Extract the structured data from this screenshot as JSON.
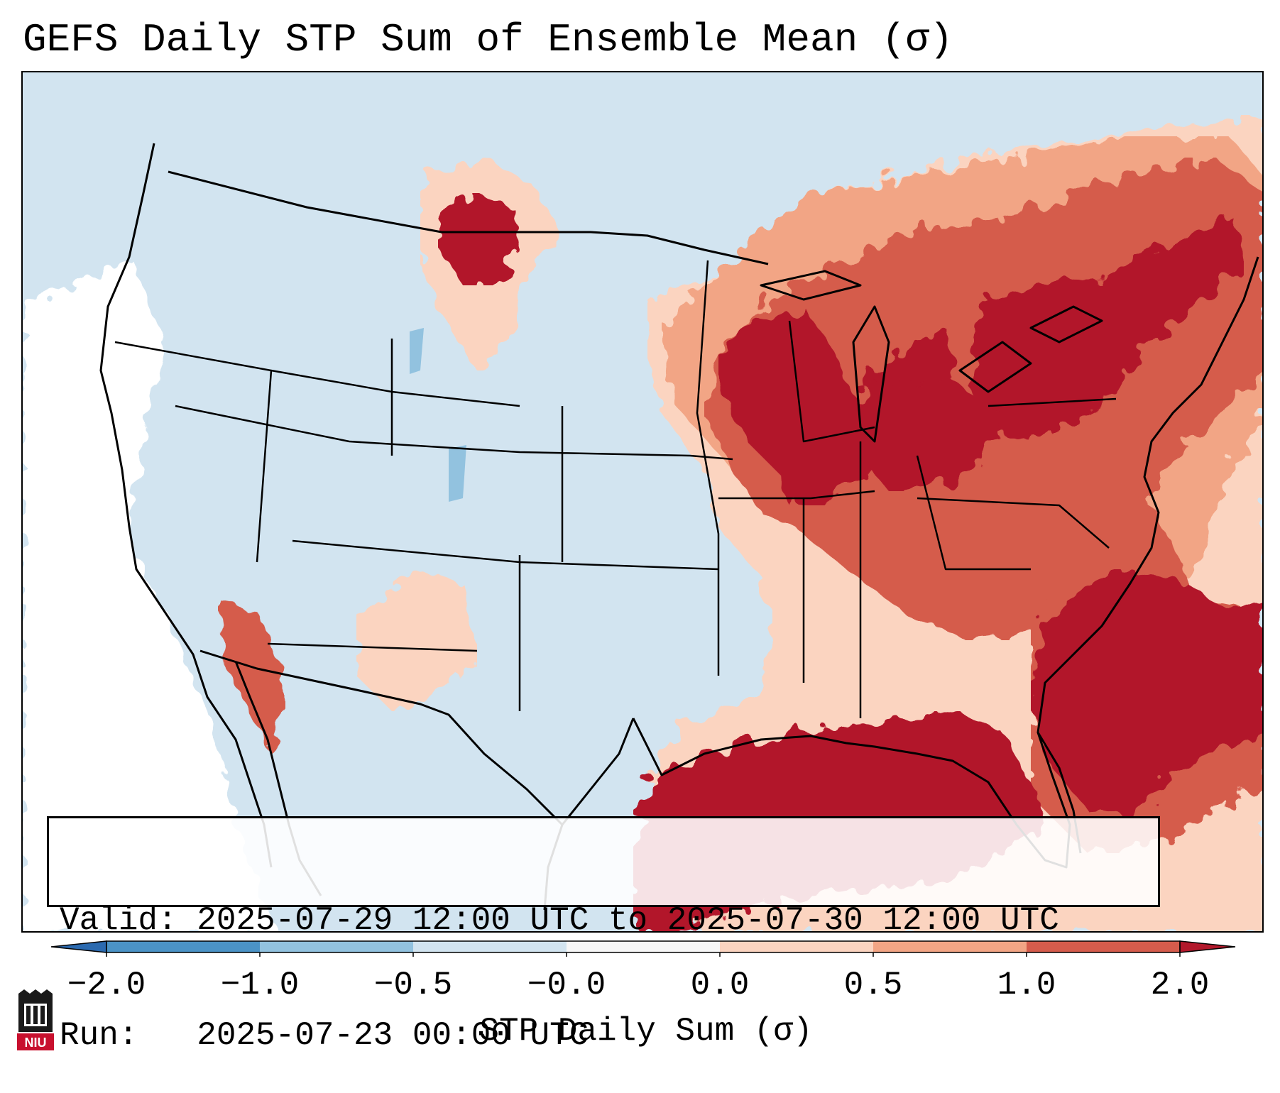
{
  "title": "GEFS Daily STP Sum of Ensemble Mean (σ)",
  "info": {
    "valid_line": "Valid: 2025-07-29 12:00 UTC to 2025-07-30 12:00 UTC",
    "run_line": "Run:   2025-07-23 00:00 UTC"
  },
  "colorbar": {
    "label": "STP Daily Sum (σ)",
    "ticks": [
      "−2.0",
      "−1.0",
      "−0.5",
      "−0.0",
      "0.0",
      "0.5",
      "1.0",
      "2.0"
    ],
    "bins": [
      {
        "range": "< -2.0",
        "color": "#2b6ab0"
      },
      {
        "range": "-2.0 to -1.0",
        "color": "#4b93c6"
      },
      {
        "range": "-1.0 to -0.5",
        "color": "#92c2df"
      },
      {
        "range": "-0.5 to -0.0",
        "color": "#d2e4f0"
      },
      {
        "range": "-0.0 to 0.0",
        "color": "#f7f7f7"
      },
      {
        "range": "0.0 to 0.5",
        "color": "#fbd4c0"
      },
      {
        "range": "0.5 to 1.0",
        "color": "#f2a585"
      },
      {
        "range": "1.0 to 2.0",
        "color": "#d55c4c"
      },
      {
        "range": "> 2.0",
        "color": "#b2182b"
      }
    ]
  },
  "map": {
    "background_color": "#d2e4f0",
    "ocean_neutral_color": "#ffffff",
    "regions": [
      {
        "name": "gulf-of-mexico",
        "level": "> 2.0"
      },
      {
        "name": "southeast-atlantic-coast",
        "level": "> 2.0"
      },
      {
        "name": "western-atlantic",
        "level": "> 2.0"
      },
      {
        "name": "upper-midwest-great-lakes",
        "level": "> 2.0"
      },
      {
        "name": "ohio-valley",
        "level": "> 2.0"
      },
      {
        "name": "pennsylvania-new-york",
        "level": "> 2.0"
      },
      {
        "name": "montana",
        "level": "> 2.0"
      },
      {
        "name": "northeast-new-england",
        "level": "1.0 to 2.0"
      },
      {
        "name": "southern-quebec-ontario",
        "level": "0.5 to 1.0"
      },
      {
        "name": "baja-california",
        "level": "1.0 to 2.0"
      },
      {
        "name": "mid-atlantic-offshore",
        "level": "1.0 to 2.0"
      },
      {
        "name": "mississippi-valley",
        "level": "0.0 to 0.5"
      },
      {
        "name": "pacific-ocean-neutral",
        "level": "-0.0 to 0.0"
      },
      {
        "name": "colorado-rockies",
        "level": "-1.0 to -0.5"
      }
    ]
  },
  "logo": {
    "text": "NIU"
  }
}
